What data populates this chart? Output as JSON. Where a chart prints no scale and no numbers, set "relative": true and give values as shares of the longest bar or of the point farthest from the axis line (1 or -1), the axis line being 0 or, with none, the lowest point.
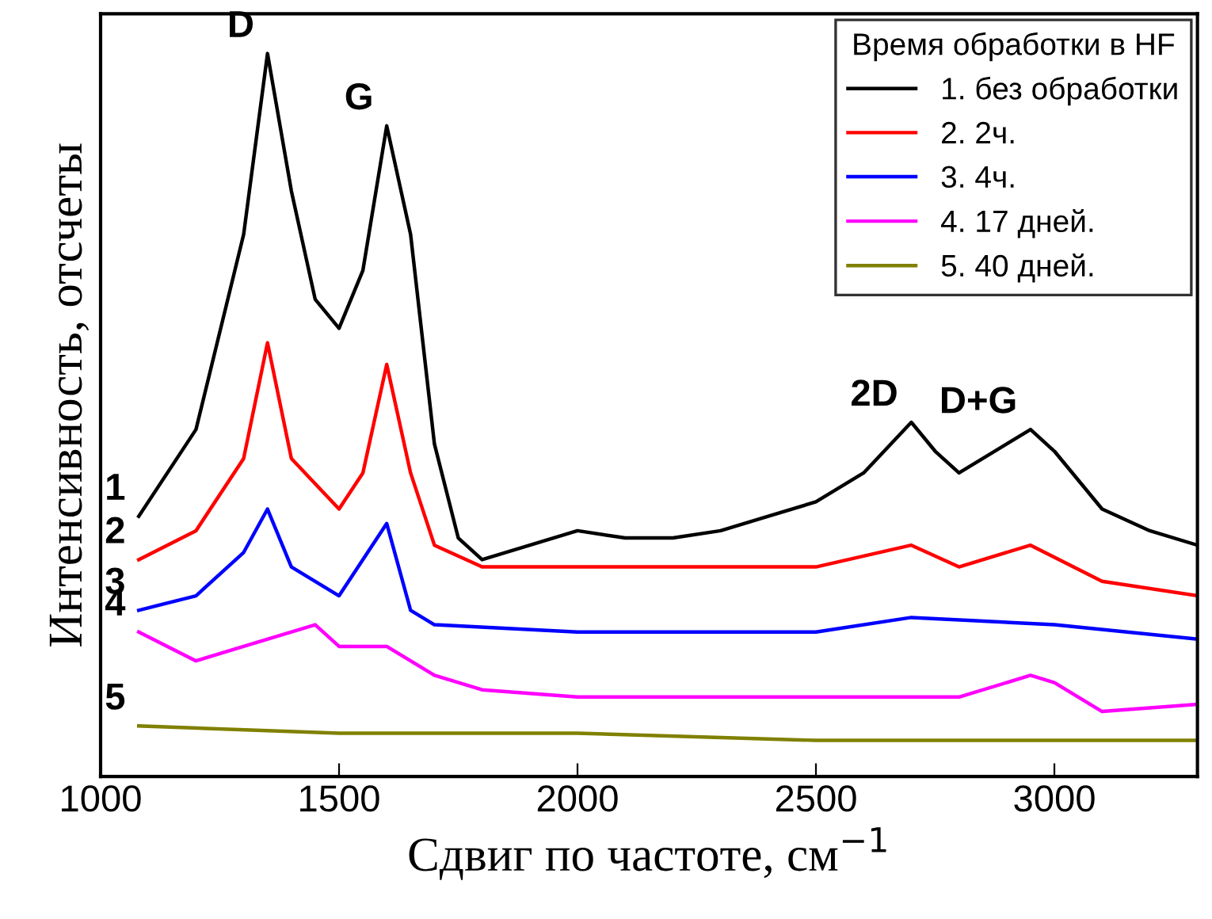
{
  "chart_data": {
    "type": "line",
    "relative": true,
    "xlabel": "Сдвиг по частоте, см$^{−1}$",
    "ylabel": "Интенсивность, отсчеты",
    "legend_title": "Время обработки в HF",
    "legend": "top right",
    "grid": false,
    "marker": "none",
    "line_style": "solid",
    "xlim": [
      1000,
      3300
    ],
    "xticks": [
      1000,
      1500,
      2000,
      2500,
      3000
    ],
    "series": [
      {
        "name": "1. без обработки",
        "color": "#000000",
        "x": [
          1080,
          1200,
          1300,
          1350,
          1400,
          1450,
          1500,
          1550,
          1600,
          1650,
          1700,
          1750,
          1800,
          1900,
          2000,
          2100,
          2200,
          2300,
          2400,
          2500,
          2600,
          2700,
          2750,
          2800,
          2900,
          2950,
          3000,
          3100,
          3200,
          3300
        ],
        "values": [
          0.36,
          0.48,
          0.75,
          1.0,
          0.81,
          0.66,
          0.62,
          0.7,
          0.9,
          0.75,
          0.46,
          0.33,
          0.3,
          0.32,
          0.34,
          0.33,
          0.33,
          0.34,
          0.36,
          0.38,
          0.42,
          0.49,
          0.45,
          0.42,
          0.46,
          0.48,
          0.45,
          0.37,
          0.34,
          0.32
        ]
      },
      {
        "name": "2. 2ч.",
        "color": "#ff0000",
        "x": [
          1080,
          1200,
          1300,
          1350,
          1400,
          1500,
          1550,
          1600,
          1650,
          1700,
          1800,
          2000,
          2500,
          2700,
          2800,
          2950,
          3100,
          3300
        ],
        "values": [
          0.3,
          0.34,
          0.44,
          0.6,
          0.44,
          0.37,
          0.42,
          0.57,
          0.42,
          0.32,
          0.29,
          0.29,
          0.29,
          0.32,
          0.29,
          0.32,
          0.27,
          0.25
        ]
      },
      {
        "name": "3. 4ч.",
        "color": "#0000ff",
        "x": [
          1080,
          1200,
          1300,
          1350,
          1400,
          1500,
          1600,
          1650,
          1700,
          2000,
          2500,
          2700,
          3000,
          3300
        ],
        "values": [
          0.23,
          0.25,
          0.31,
          0.37,
          0.29,
          0.25,
          0.35,
          0.23,
          0.21,
          0.2,
          0.2,
          0.22,
          0.21,
          0.19
        ]
      },
      {
        "name": "4. 17 дней.",
        "color": "#ff00ff",
        "x": [
          1080,
          1200,
          1300,
          1450,
          1500,
          1600,
          1700,
          1800,
          2000,
          2500,
          2800,
          2950,
          3000,
          3100,
          3300
        ],
        "values": [
          0.2,
          0.16,
          0.18,
          0.21,
          0.18,
          0.18,
          0.14,
          0.12,
          0.11,
          0.11,
          0.11,
          0.14,
          0.13,
          0.09,
          0.1
        ]
      },
      {
        "name": "5. 40 дней.",
        "color": "#808000",
        "x": [
          1080,
          1500,
          2000,
          2500,
          3000,
          3300
        ],
        "values": [
          0.07,
          0.06,
          0.06,
          0.05,
          0.05,
          0.05
        ]
      }
    ],
    "annotations": [
      {
        "text": "D",
        "x": 1350,
        "y": 1.0
      },
      {
        "text": "G",
        "x": 1600,
        "y": 0.9
      },
      {
        "text": "2D",
        "x": 2700,
        "y": 0.49
      },
      {
        "text": "D+G",
        "x": 2950,
        "y": 0.48
      },
      {
        "text": "1",
        "x": 1080,
        "y": 0.36
      },
      {
        "text": "2",
        "x": 1080,
        "y": 0.3
      },
      {
        "text": "3",
        "x": 1080,
        "y": 0.23
      },
      {
        "text": "4",
        "x": 1080,
        "y": 0.2
      },
      {
        "text": "5",
        "x": 1080,
        "y": 0.07
      }
    ]
  }
}
